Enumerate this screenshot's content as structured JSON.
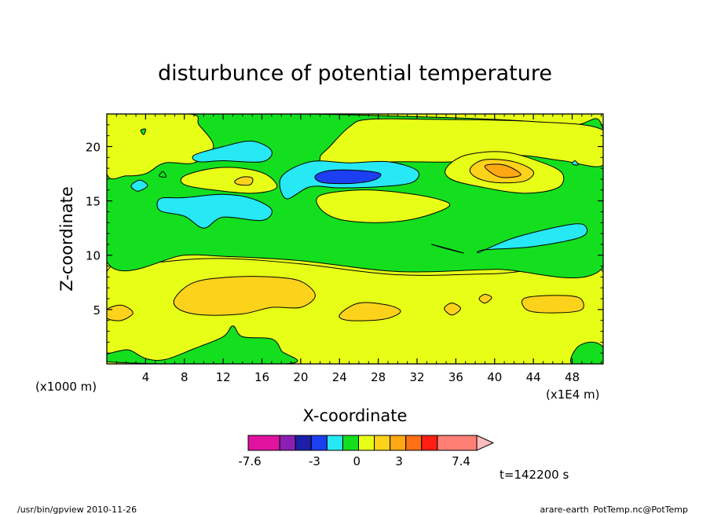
{
  "chart_data": {
    "type": "heatmap",
    "title": "disturbunce of potential temperature",
    "xlabel": "X-coordinate",
    "ylabel": "Z-coordinate",
    "x_unit": "(x1E4 m)",
    "y_unit": "(x1000 m)",
    "xlim": [
      0,
      51.2
    ],
    "ylim": [
      0,
      23
    ],
    "x_ticks": [
      4,
      8,
      12,
      16,
      20,
      24,
      28,
      32,
      36,
      40,
      44,
      48
    ],
    "x_tick_labels": [
      "4",
      "8",
      "12",
      "16",
      "20",
      "24",
      "28",
      "32",
      "36",
      "40",
      "44",
      "48"
    ],
    "y_ticks": [
      5,
      10,
      15,
      20
    ],
    "y_tick_labels": [
      "5",
      "10",
      "15",
      "20"
    ],
    "colorbar": {
      "colors": [
        "#e0139f",
        "#8b1fb4",
        "#1d1fa9",
        "#1c3ff2",
        "#27e8f5",
        "#13df1f",
        "#e7ff17",
        "#fdd21b",
        "#ffa814",
        "#ff6f14",
        "#ff1f13",
        "#ff7f75",
        "#ffbcbc"
      ],
      "labels": [
        {
          "value": -7.6,
          "text": "-7.6"
        },
        {
          "value": -3,
          "text": "-3"
        },
        {
          "value": 0,
          "text": "0"
        },
        {
          "value": 3,
          "text": "3"
        },
        {
          "value": 7.4,
          "text": "7.4"
        }
      ]
    },
    "regions": [
      {
        "color": "#e7ff17",
        "pts": [
          [
            0,
            0
          ],
          [
            51.2,
            0
          ],
          [
            51.2,
            8.5
          ],
          [
            40,
            8.3
          ],
          [
            30,
            8.2
          ],
          [
            20,
            9.2
          ],
          [
            12,
            9.7
          ],
          [
            6,
            9.4
          ],
          [
            0,
            8.5
          ]
        ]
      },
      {
        "color": "#13df1f",
        "pts": [
          [
            0,
            0.2
          ],
          [
            2,
            1.3
          ],
          [
            4,
            0.5
          ],
          [
            6,
            0.4
          ],
          [
            9,
            1.4
          ],
          [
            12,
            2.5
          ],
          [
            13,
            3.5
          ],
          [
            14,
            2.5
          ],
          [
            17,
            2.3
          ],
          [
            18,
            1.2
          ],
          [
            18.4,
            0
          ]
        ]
      },
      {
        "color": "#13df1f",
        "pts": [
          [
            48,
            0
          ],
          [
            48.5,
            1.5
          ],
          [
            50,
            2
          ],
          [
            51.2,
            1.5
          ],
          [
            51.2,
            0
          ]
        ]
      },
      {
        "color": "#fdd21b",
        "pts": [
          [
            7,
            6
          ],
          [
            9,
            7.5
          ],
          [
            13,
            8
          ],
          [
            17,
            8
          ],
          [
            20,
            7.6
          ],
          [
            21.5,
            6.3
          ],
          [
            20,
            5.2
          ],
          [
            17,
            5.2
          ],
          [
            14,
            4.6
          ],
          [
            10,
            4.5
          ],
          [
            7.5,
            5
          ]
        ]
      },
      {
        "color": "#fdd21b",
        "pts": [
          [
            0,
            5
          ],
          [
            1.5,
            5.4
          ],
          [
            2.7,
            4.7
          ],
          [
            1.5,
            4
          ],
          [
            0,
            4.2
          ]
        ]
      },
      {
        "color": "#fdd21b",
        "pts": [
          [
            24,
            4.5
          ],
          [
            26,
            5.6
          ],
          [
            29,
            5.4
          ],
          [
            30.3,
            4.8
          ],
          [
            28.5,
            4.1
          ],
          [
            25,
            4
          ]
        ]
      },
      {
        "color": "#fdd21b",
        "pts": [
          [
            34.8,
            5.1
          ],
          [
            35.6,
            5.6
          ],
          [
            36.5,
            5.1
          ],
          [
            35.6,
            4.5
          ]
        ]
      },
      {
        "color": "#fdd21b",
        "pts": [
          [
            38.4,
            6
          ],
          [
            39,
            6.4
          ],
          [
            39.7,
            6.1
          ],
          [
            39,
            5.6
          ]
        ]
      },
      {
        "color": "#fdd21b",
        "pts": [
          [
            43,
            6
          ],
          [
            46,
            6.3
          ],
          [
            48.7,
            6.1
          ],
          [
            49,
            5
          ],
          [
            46.5,
            4.7
          ],
          [
            43.5,
            4.9
          ]
        ]
      },
      {
        "color": "#13df1f",
        "pts": [
          [
            0,
            9.4
          ],
          [
            8,
            10
          ],
          [
            12,
            9.9
          ],
          [
            20,
            9.5
          ],
          [
            30,
            8.5
          ],
          [
            40,
            8.7
          ],
          [
            51.2,
            8.9
          ],
          [
            51.2,
            21.5
          ],
          [
            48,
            22
          ],
          [
            40,
            22.5
          ],
          [
            30,
            22.8
          ],
          [
            20,
            23
          ],
          [
            0,
            23
          ]
        ]
      },
      {
        "color": "#e7ff17",
        "pts": [
          [
            0,
            23
          ],
          [
            8.5,
            23
          ],
          [
            9.5,
            22
          ],
          [
            11,
            20
          ],
          [
            9,
            18.5
          ],
          [
            6,
            18.5
          ],
          [
            4,
            17.5
          ],
          [
            2,
            17.3
          ],
          [
            0,
            17.5
          ]
        ]
      },
      {
        "color": "#e7ff17",
        "pts": [
          [
            51.2,
            21.5
          ],
          [
            44,
            22.3
          ],
          [
            34,
            22.5
          ],
          [
            27,
            22.5
          ],
          [
            25,
            21.8
          ],
          [
            23,
            20
          ],
          [
            22,
            19
          ],
          [
            23,
            18.4
          ],
          [
            30,
            18.6
          ],
          [
            36,
            18.6
          ],
          [
            42,
            19.2
          ],
          [
            47,
            18.7
          ],
          [
            51.2,
            18.3
          ]
        ]
      },
      {
        "color": "#e7ff17",
        "pts": [
          [
            8,
            17.3
          ],
          [
            11,
            18
          ],
          [
            14,
            18
          ],
          [
            16.5,
            17.4
          ],
          [
            17.5,
            16.2
          ],
          [
            15,
            15.7
          ],
          [
            11,
            16
          ],
          [
            8,
            16.5
          ]
        ]
      },
      {
        "color": "#e7ff17",
        "pts": [
          [
            22,
            15.5
          ],
          [
            26,
            16
          ],
          [
            30,
            15.8
          ],
          [
            34,
            15.2
          ],
          [
            35.3,
            14.5
          ],
          [
            32,
            13.4
          ],
          [
            28,
            13
          ],
          [
            24,
            13.3
          ],
          [
            22,
            14.3
          ]
        ]
      },
      {
        "color": "#e7ff17",
        "pts": [
          [
            35,
            18
          ],
          [
            37,
            19.2
          ],
          [
            41,
            19.5
          ],
          [
            45,
            18.5
          ],
          [
            47,
            17.5
          ],
          [
            46.5,
            16.2
          ],
          [
            43,
            15.7
          ],
          [
            38.5,
            16.3
          ],
          [
            35.5,
            17
          ]
        ]
      },
      {
        "color": "#fdd21b",
        "pts": [
          [
            37.5,
            18
          ],
          [
            39,
            18.8
          ],
          [
            42,
            18.6
          ],
          [
            44,
            17.7
          ],
          [
            43,
            16.8
          ],
          [
            40,
            16.7
          ],
          [
            38,
            17.2
          ]
        ]
      },
      {
        "color": "#ffa814",
        "pts": [
          [
            39,
            18.2
          ],
          [
            41,
            18.3
          ],
          [
            42.7,
            17.4
          ],
          [
            40.5,
            17.2
          ]
        ]
      },
      {
        "color": "#fdd21b",
        "pts": [
          [
            13.2,
            16.8
          ],
          [
            14,
            17.2
          ],
          [
            15,
            17.1
          ],
          [
            14.8,
            16.5
          ],
          [
            13.6,
            16.5
          ]
        ]
      },
      {
        "color": "#27e8f5",
        "pts": [
          [
            9,
            19.2
          ],
          [
            12,
            20
          ],
          [
            15,
            20.5
          ],
          [
            17,
            19.6
          ],
          [
            16,
            18.6
          ],
          [
            12,
            18.7
          ],
          [
            9.5,
            18.6
          ]
        ]
      },
      {
        "color": "#27e8f5",
        "pts": [
          [
            5.5,
            15.2
          ],
          [
            8,
            15.3
          ],
          [
            12,
            15.6
          ],
          [
            15,
            15.2
          ],
          [
            17,
            14.2
          ],
          [
            16,
            13.2
          ],
          [
            12,
            13.5
          ],
          [
            10,
            12.5
          ],
          [
            8,
            13.6
          ],
          [
            5.5,
            14.1
          ]
        ]
      },
      {
        "color": "#27e8f5",
        "pts": [
          [
            18,
            17.2
          ],
          [
            21,
            18.6
          ],
          [
            25,
            18.5
          ],
          [
            29,
            18.6
          ],
          [
            32,
            17.8
          ],
          [
            31.5,
            16.7
          ],
          [
            28,
            16.3
          ],
          [
            24,
            16.2
          ],
          [
            21,
            16.3
          ],
          [
            18.5,
            15.2
          ]
        ]
      },
      {
        "color": "#1c3ff2",
        "pts": [
          [
            21.5,
            17.3
          ],
          [
            23,
            17.8
          ],
          [
            26,
            17.8
          ],
          [
            28.2,
            17.5
          ],
          [
            27.5,
            16.9
          ],
          [
            25,
            16.6
          ],
          [
            22.2,
            16.7
          ]
        ]
      },
      {
        "color": "#27e8f5",
        "pts": [
          [
            2.5,
            16.4
          ],
          [
            3.4,
            16.9
          ],
          [
            4.2,
            16.4
          ],
          [
            3.2,
            15.9
          ]
        ]
      },
      {
        "color": "#27e8f5",
        "pts": [
          [
            38.5,
            10.3
          ],
          [
            42,
            11.6
          ],
          [
            47,
            12.7
          ],
          [
            49.2,
            12.8
          ],
          [
            49,
            11.7
          ],
          [
            44,
            10.8
          ],
          [
            39,
            10.5
          ]
        ]
      },
      {
        "color": "#27e8f5",
        "pts": [
          [
            33.5,
            11
          ],
          [
            35,
            10.6
          ],
          [
            36.8,
            10.2
          ],
          [
            35.2,
            10.6
          ]
        ]
      },
      {
        "color": "#27e8f5",
        "pts": [
          [
            48,
            18.4
          ],
          [
            48.3,
            18.7
          ],
          [
            48.6,
            18.3
          ]
        ]
      },
      {
        "color": "#13df1f",
        "pts": [
          [
            3.5,
            21.5
          ],
          [
            3.8,
            21.1
          ],
          [
            4,
            21.6
          ]
        ]
      },
      {
        "color": "#13df1f",
        "pts": [
          [
            5.4,
            17.3
          ],
          [
            5.8,
            17.7
          ],
          [
            6.1,
            17.2
          ]
        ]
      }
    ]
  },
  "annotations": {
    "time": "t=142200 s",
    "footer_left": "/usr/bin/gpview  2010-11-26",
    "footer_right": "arare-earth_PotTemp.nc@PotTemp"
  }
}
